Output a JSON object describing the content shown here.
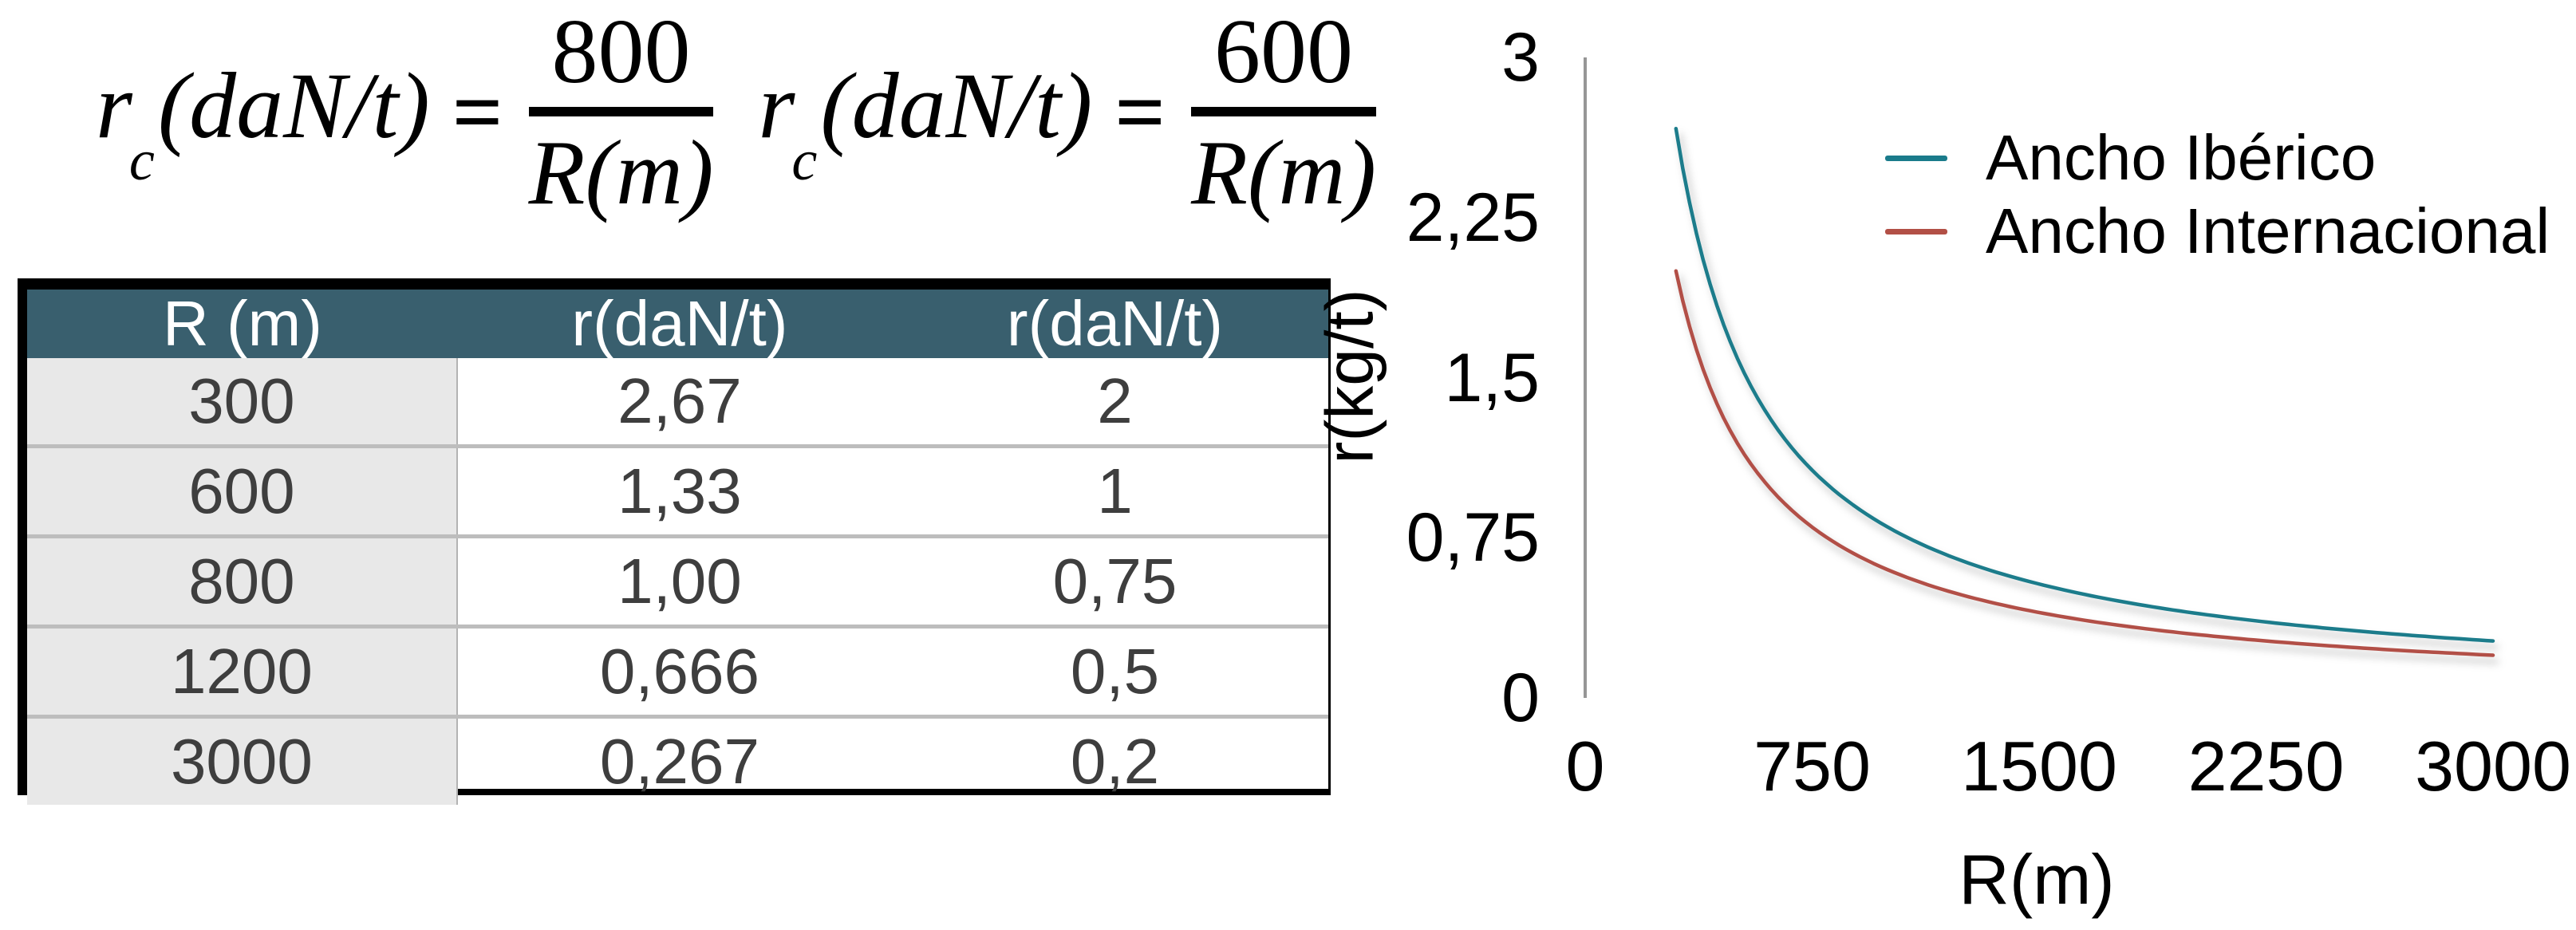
{
  "formulas": [
    {
      "lhs_base": "r",
      "lhs_sub": "c",
      "lhs_args": "(daN/t)",
      "equals": "=",
      "numerator": "800",
      "denominator": "R(m)"
    },
    {
      "lhs_base": "r",
      "lhs_sub": "c",
      "lhs_args": "(daN/t)",
      "equals": "=",
      "numerator": "600",
      "denominator": "R(m)"
    }
  ],
  "table": {
    "headers": [
      "R (m)",
      "r(daN/t)",
      "r(daN/t)"
    ],
    "rows": [
      [
        "300",
        "2,67",
        "2"
      ],
      [
        "600",
        "1,33",
        "1"
      ],
      [
        "800",
        "1,00",
        "0,75"
      ],
      [
        "1200",
        "0,666",
        "0,5"
      ],
      [
        "3000",
        "0,267",
        "0,2"
      ]
    ]
  },
  "chart": {
    "y_axis_title": "r(kg/t)",
    "x_axis_title": "R(m)",
    "y_tick_labels": [
      "3",
      "2,25",
      "1,5",
      "0,75",
      "0"
    ],
    "x_tick_labels": [
      "0",
      "750",
      "1500",
      "2250",
      "3000"
    ]
  },
  "colors": {
    "table_header_bg": "#395f6e",
    "table_first_column_bg": "#e8e8e8",
    "grid_line": "#969696",
    "row_separator": "#bdbdbd",
    "series_ancho_iberico": "#1a7b8b",
    "series_ancho_internacional": "#b25046"
  },
  "chart_data": {
    "type": "line",
    "title": "",
    "xlabel": "R(m)",
    "ylabel": "r(kg/t)",
    "xlim": [
      0,
      3000
    ],
    "ylim": [
      0,
      3
    ],
    "x_ticks": [
      0,
      750,
      1500,
      2250,
      3000
    ],
    "y_ticks": [
      0,
      0.75,
      1.5,
      2.25,
      3
    ],
    "grid": true,
    "legend_position": "inside upper right",
    "series": [
      {
        "name": "Ancho Ibérico",
        "color": "#1a7b8b",
        "formula": "r = 800 / R",
        "coefficient": 800,
        "x": [
          300,
          600,
          800,
          1200,
          3000
        ],
        "y": [
          2.67,
          1.33,
          1.0,
          0.666,
          0.267
        ]
      },
      {
        "name": "Ancho Internacional",
        "color": "#b25046",
        "formula": "r = 600 / R",
        "coefficient": 600,
        "x": [
          300,
          600,
          800,
          1200,
          3000
        ],
        "y": [
          2.0,
          1.0,
          0.75,
          0.5,
          0.2
        ]
      }
    ]
  }
}
